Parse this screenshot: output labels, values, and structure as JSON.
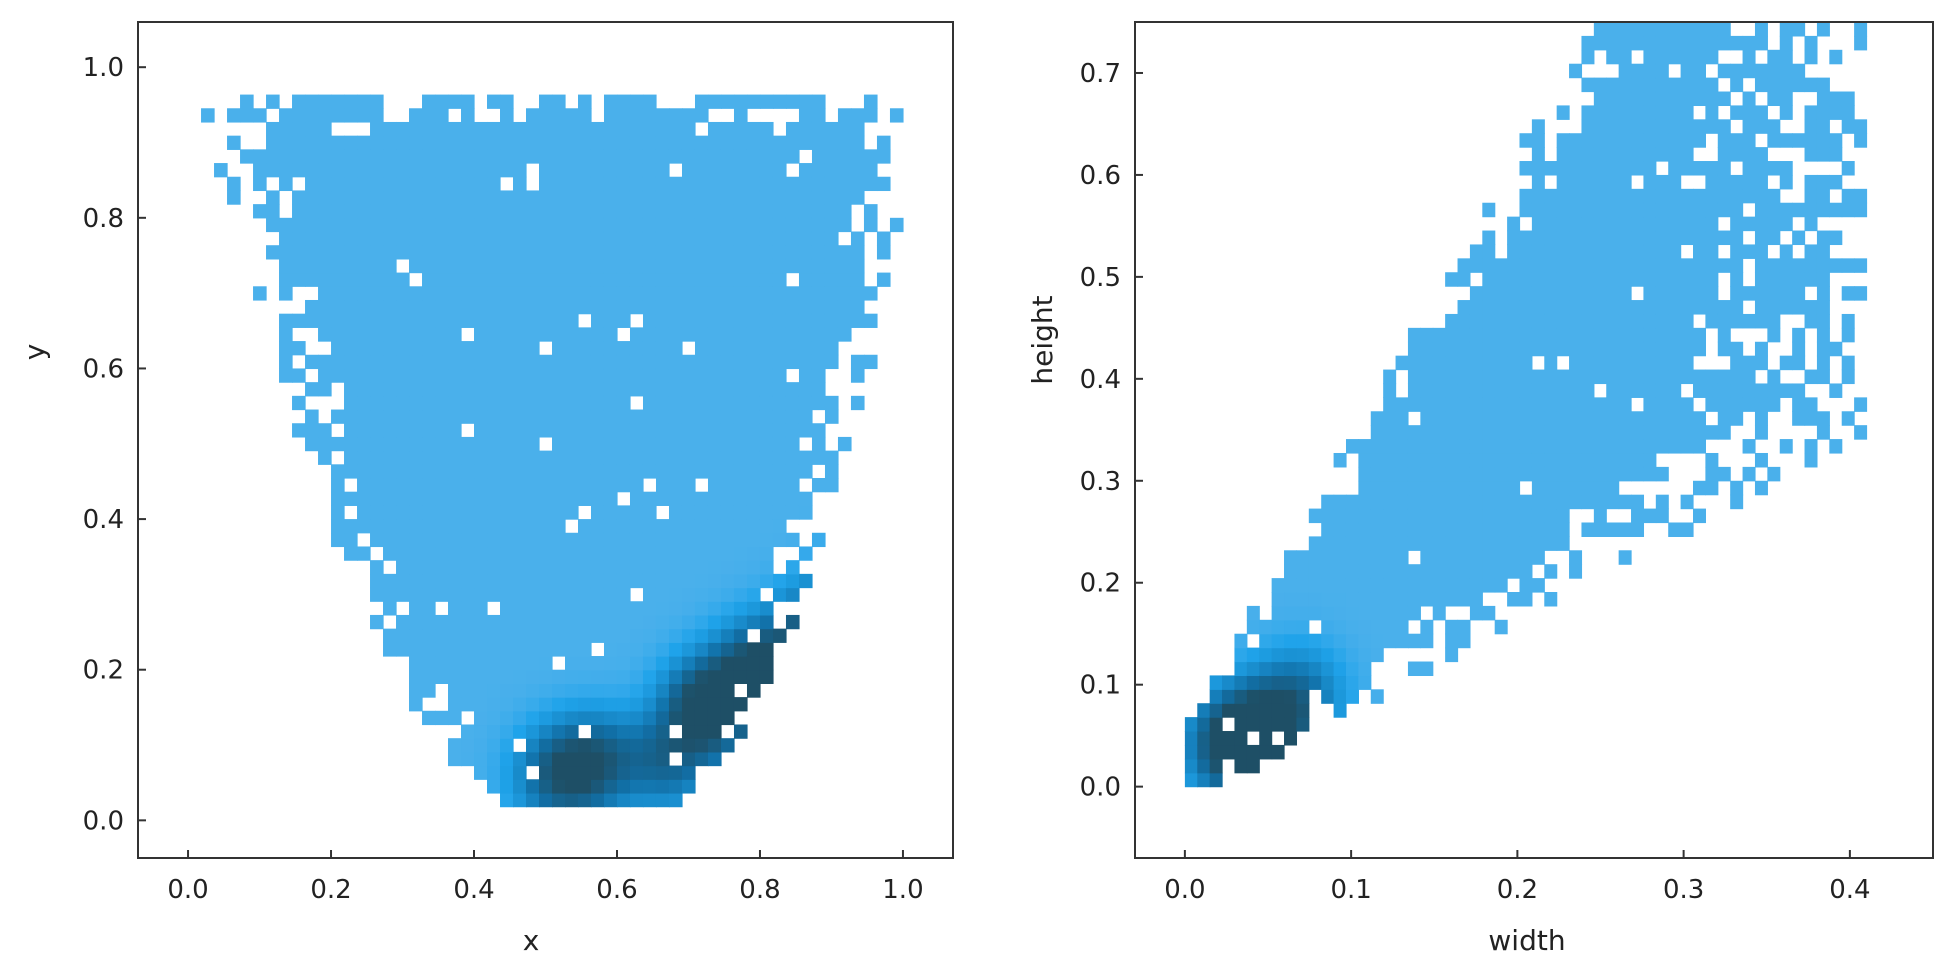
{
  "chart_data": [
    {
      "type": "heatmap",
      "xlabel": "x",
      "ylabel": "y",
      "xlim": [
        -0.07,
        1.07
      ],
      "ylim": [
        -0.05,
        1.06
      ],
      "xticks": [
        "0.0",
        "0.2",
        "0.4",
        "0.6",
        "0.8",
        "1.0"
      ],
      "yticks": [
        "0.0",
        "0.2",
        "0.4",
        "0.6",
        "0.8",
        "1.0"
      ],
      "x_range": [
        0.0,
        1.0
      ],
      "y_range": [
        0.0,
        1.0
      ],
      "grid": false,
      "legend": "none",
      "colormap": [
        "#9ec9ee",
        "#1fa3ea",
        "#116fa6",
        "#1e4f66"
      ],
      "background_density": 0.22,
      "hotspots": [
        {
          "x": 0.73,
          "y": 0.15,
          "density": 1.0
        },
        {
          "x": 0.8,
          "y": 0.2,
          "density": 0.85
        },
        {
          "x": 0.88,
          "y": 0.25,
          "density": 0.65
        },
        {
          "x": 0.52,
          "y": 0.06,
          "density": 0.6
        },
        {
          "x": 0.57,
          "y": 0.08,
          "density": 0.55
        },
        {
          "x": 0.67,
          "y": 0.08,
          "density": 0.5
        },
        {
          "x": 0.95,
          "y": 0.3,
          "density": 0.5
        }
      ]
    },
    {
      "type": "heatmap",
      "xlabel": "width",
      "ylabel": "height",
      "xlim": [
        -0.03,
        0.45
      ],
      "ylim": [
        -0.07,
        0.75
      ],
      "xticks": [
        "0.0",
        "0.1",
        "0.2",
        "0.3",
        "0.4"
      ],
      "yticks": [
        "0.0",
        "0.1",
        "0.2",
        "0.3",
        "0.4",
        "0.5",
        "0.6",
        "0.7"
      ],
      "x_range": [
        0.0,
        0.41
      ],
      "y_range": [
        0.0,
        0.75
      ],
      "grid": false,
      "legend": "none",
      "colormap": [
        "#9ec9ee",
        "#1fa3ea",
        "#116fa6",
        "#1e4f66"
      ],
      "background_density": 0.22,
      "hotspots": [
        {
          "x": 0.03,
          "y": 0.04,
          "density": 1.0
        },
        {
          "x": 0.05,
          "y": 0.06,
          "density": 0.7
        },
        {
          "x": 0.07,
          "y": 0.09,
          "density": 0.4
        }
      ]
    }
  ]
}
